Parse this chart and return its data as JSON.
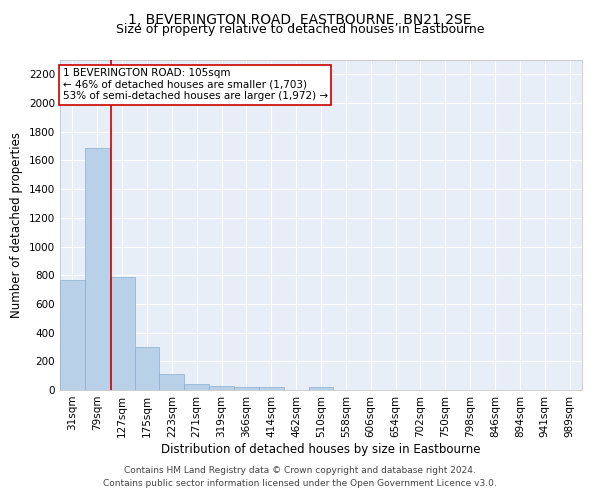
{
  "title": "1, BEVERINGTON ROAD, EASTBOURNE, BN21 2SE",
  "subtitle": "Size of property relative to detached houses in Eastbourne",
  "xlabel": "Distribution of detached houses by size in Eastbourne",
  "ylabel": "Number of detached properties",
  "categories": [
    "31sqm",
    "79sqm",
    "127sqm",
    "175sqm",
    "223sqm",
    "271sqm",
    "319sqm",
    "366sqm",
    "414sqm",
    "462sqm",
    "510sqm",
    "558sqm",
    "606sqm",
    "654sqm",
    "702sqm",
    "750sqm",
    "798sqm",
    "846sqm",
    "894sqm",
    "941sqm",
    "989sqm"
  ],
  "values": [
    770,
    1690,
    790,
    300,
    110,
    43,
    30,
    22,
    20,
    0,
    20,
    0,
    0,
    0,
    0,
    0,
    0,
    0,
    0,
    0,
    0
  ],
  "bar_color": "#b8d0e8",
  "bar_edge_color": "#8ab0d0",
  "annotation_label": "1 BEVERINGTON ROAD: 105sqm",
  "annotation_line1": "← 46% of detached houses are smaller (1,703)",
  "annotation_line2": "53% of semi-detached houses are larger (1,972) →",
  "vline_color": "#cc0000",
  "ylim": [
    0,
    2300
  ],
  "yticks": [
    0,
    200,
    400,
    600,
    800,
    1000,
    1200,
    1400,
    1600,
    1800,
    2000,
    2200
  ],
  "footer_line1": "Contains HM Land Registry data © Crown copyright and database right 2024.",
  "footer_line2": "Contains public sector information licensed under the Open Government Licence v3.0.",
  "plot_bg_color": "#e8eef8",
  "title_fontsize": 10,
  "subtitle_fontsize": 9,
  "axis_label_fontsize": 8.5,
  "tick_fontsize": 7.5,
  "annotation_fontsize": 7.5,
  "footer_fontsize": 6.5,
  "vline_x": 1.54
}
